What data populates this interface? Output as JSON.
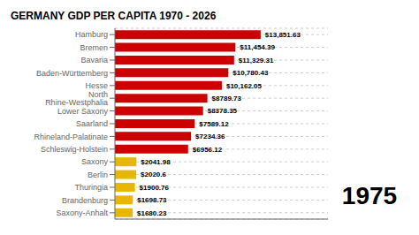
{
  "chart_data": {
    "type": "bar",
    "orientation": "horizontal",
    "title": "GERMANY GDP PER CAPITA 1970 - 2026",
    "annotation": "1975",
    "categories": [
      "Hamburg",
      "Bremen",
      "Bavaria",
      "Baden-Württemberg",
      "Hesse",
      "North Rhine-Westphalia",
      "Lower Saxony",
      "Saarland",
      "Rhineland-Palatinate",
      "Schleswig-Holstein",
      "Saxony",
      "Berlin",
      "Thuringia",
      "Brandenburg",
      "Saxony-Anhalt"
    ],
    "values": [
      13851.63,
      11454.39,
      11329.31,
      10780.43,
      10162.05,
      8789.73,
      8378.35,
      7589.12,
      7234.36,
      6956.12,
      2041.98,
      2020.6,
      1900.76,
      1698.73,
      1680.23
    ],
    "value_labels": [
      "$13,851.63",
      "$11,454.39",
      "$11,329.31",
      "$10,780.43",
      "$10,162.05",
      "$8789.73",
      "$8378.35",
      "$7589.12",
      "$7234.36",
      "$6956.12",
      "$2041.98",
      "$2020.6",
      "$1900.76",
      "$1698.73",
      "$1680.23"
    ],
    "colors": [
      "#cc0000",
      "#cc0000",
      "#cc0000",
      "#cc0000",
      "#cc0000",
      "#cc0000",
      "#cc0000",
      "#cc0000",
      "#cc0000",
      "#cc0000",
      "#e8b800",
      "#e8b800",
      "#e8b800",
      "#e8b800",
      "#e8b800"
    ],
    "xlim": [
      0,
      20250
    ],
    "data_labels": true,
    "tick_labels": "y",
    "grid": true
  }
}
